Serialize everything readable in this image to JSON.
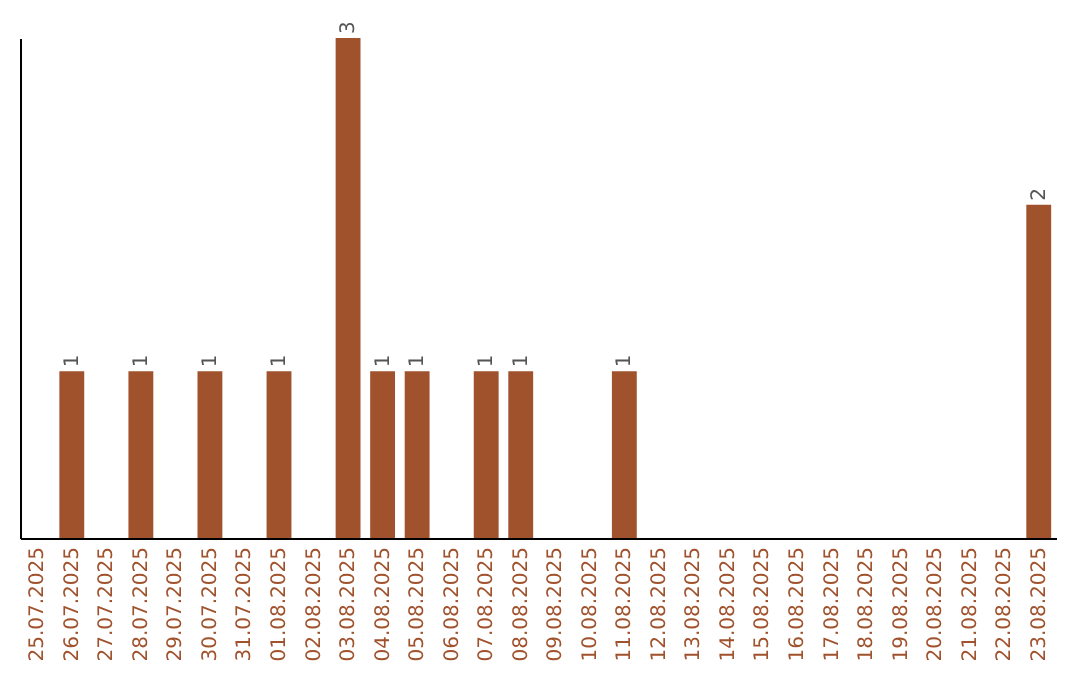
{
  "chart_data": {
    "type": "bar",
    "categories": [
      "25.07.2025",
      "26.07.2025",
      "27.07.2025",
      "28.07.2025",
      "29.07.2025",
      "30.07.2025",
      "31.07.2025",
      "01.08.2025",
      "02.08.2025",
      "03.08.2025",
      "04.08.2025",
      "05.08.2025",
      "06.08.2025",
      "07.08.2025",
      "08.08.2025",
      "09.08.2025",
      "10.08.2025",
      "11.08.2025",
      "12.08.2025",
      "13.08.2025",
      "14.08.2025",
      "15.08.2025",
      "16.08.2025",
      "17.08.2025",
      "18.08.2025",
      "19.08.2025",
      "20.08.2025",
      "21.08.2025",
      "22.08.2025",
      "23.08.2025"
    ],
    "values": [
      0,
      1,
      0,
      1,
      0,
      1,
      0,
      1,
      0,
      3,
      1,
      1,
      0,
      1,
      1,
      0,
      0,
      1,
      0,
      0,
      0,
      0,
      0,
      0,
      0,
      0,
      0,
      0,
      0,
      2
    ],
    "value_labels": [
      null,
      "1",
      null,
      "1",
      null,
      "1",
      null,
      "1",
      null,
      "3",
      "1",
      "1",
      null,
      "1",
      "1",
      null,
      null,
      "1",
      null,
      null,
      null,
      null,
      null,
      null,
      null,
      null,
      null,
      null,
      null,
      "2"
    ],
    "color": "#a0522d",
    "tick_labels": "x",
    "grid": false
  }
}
